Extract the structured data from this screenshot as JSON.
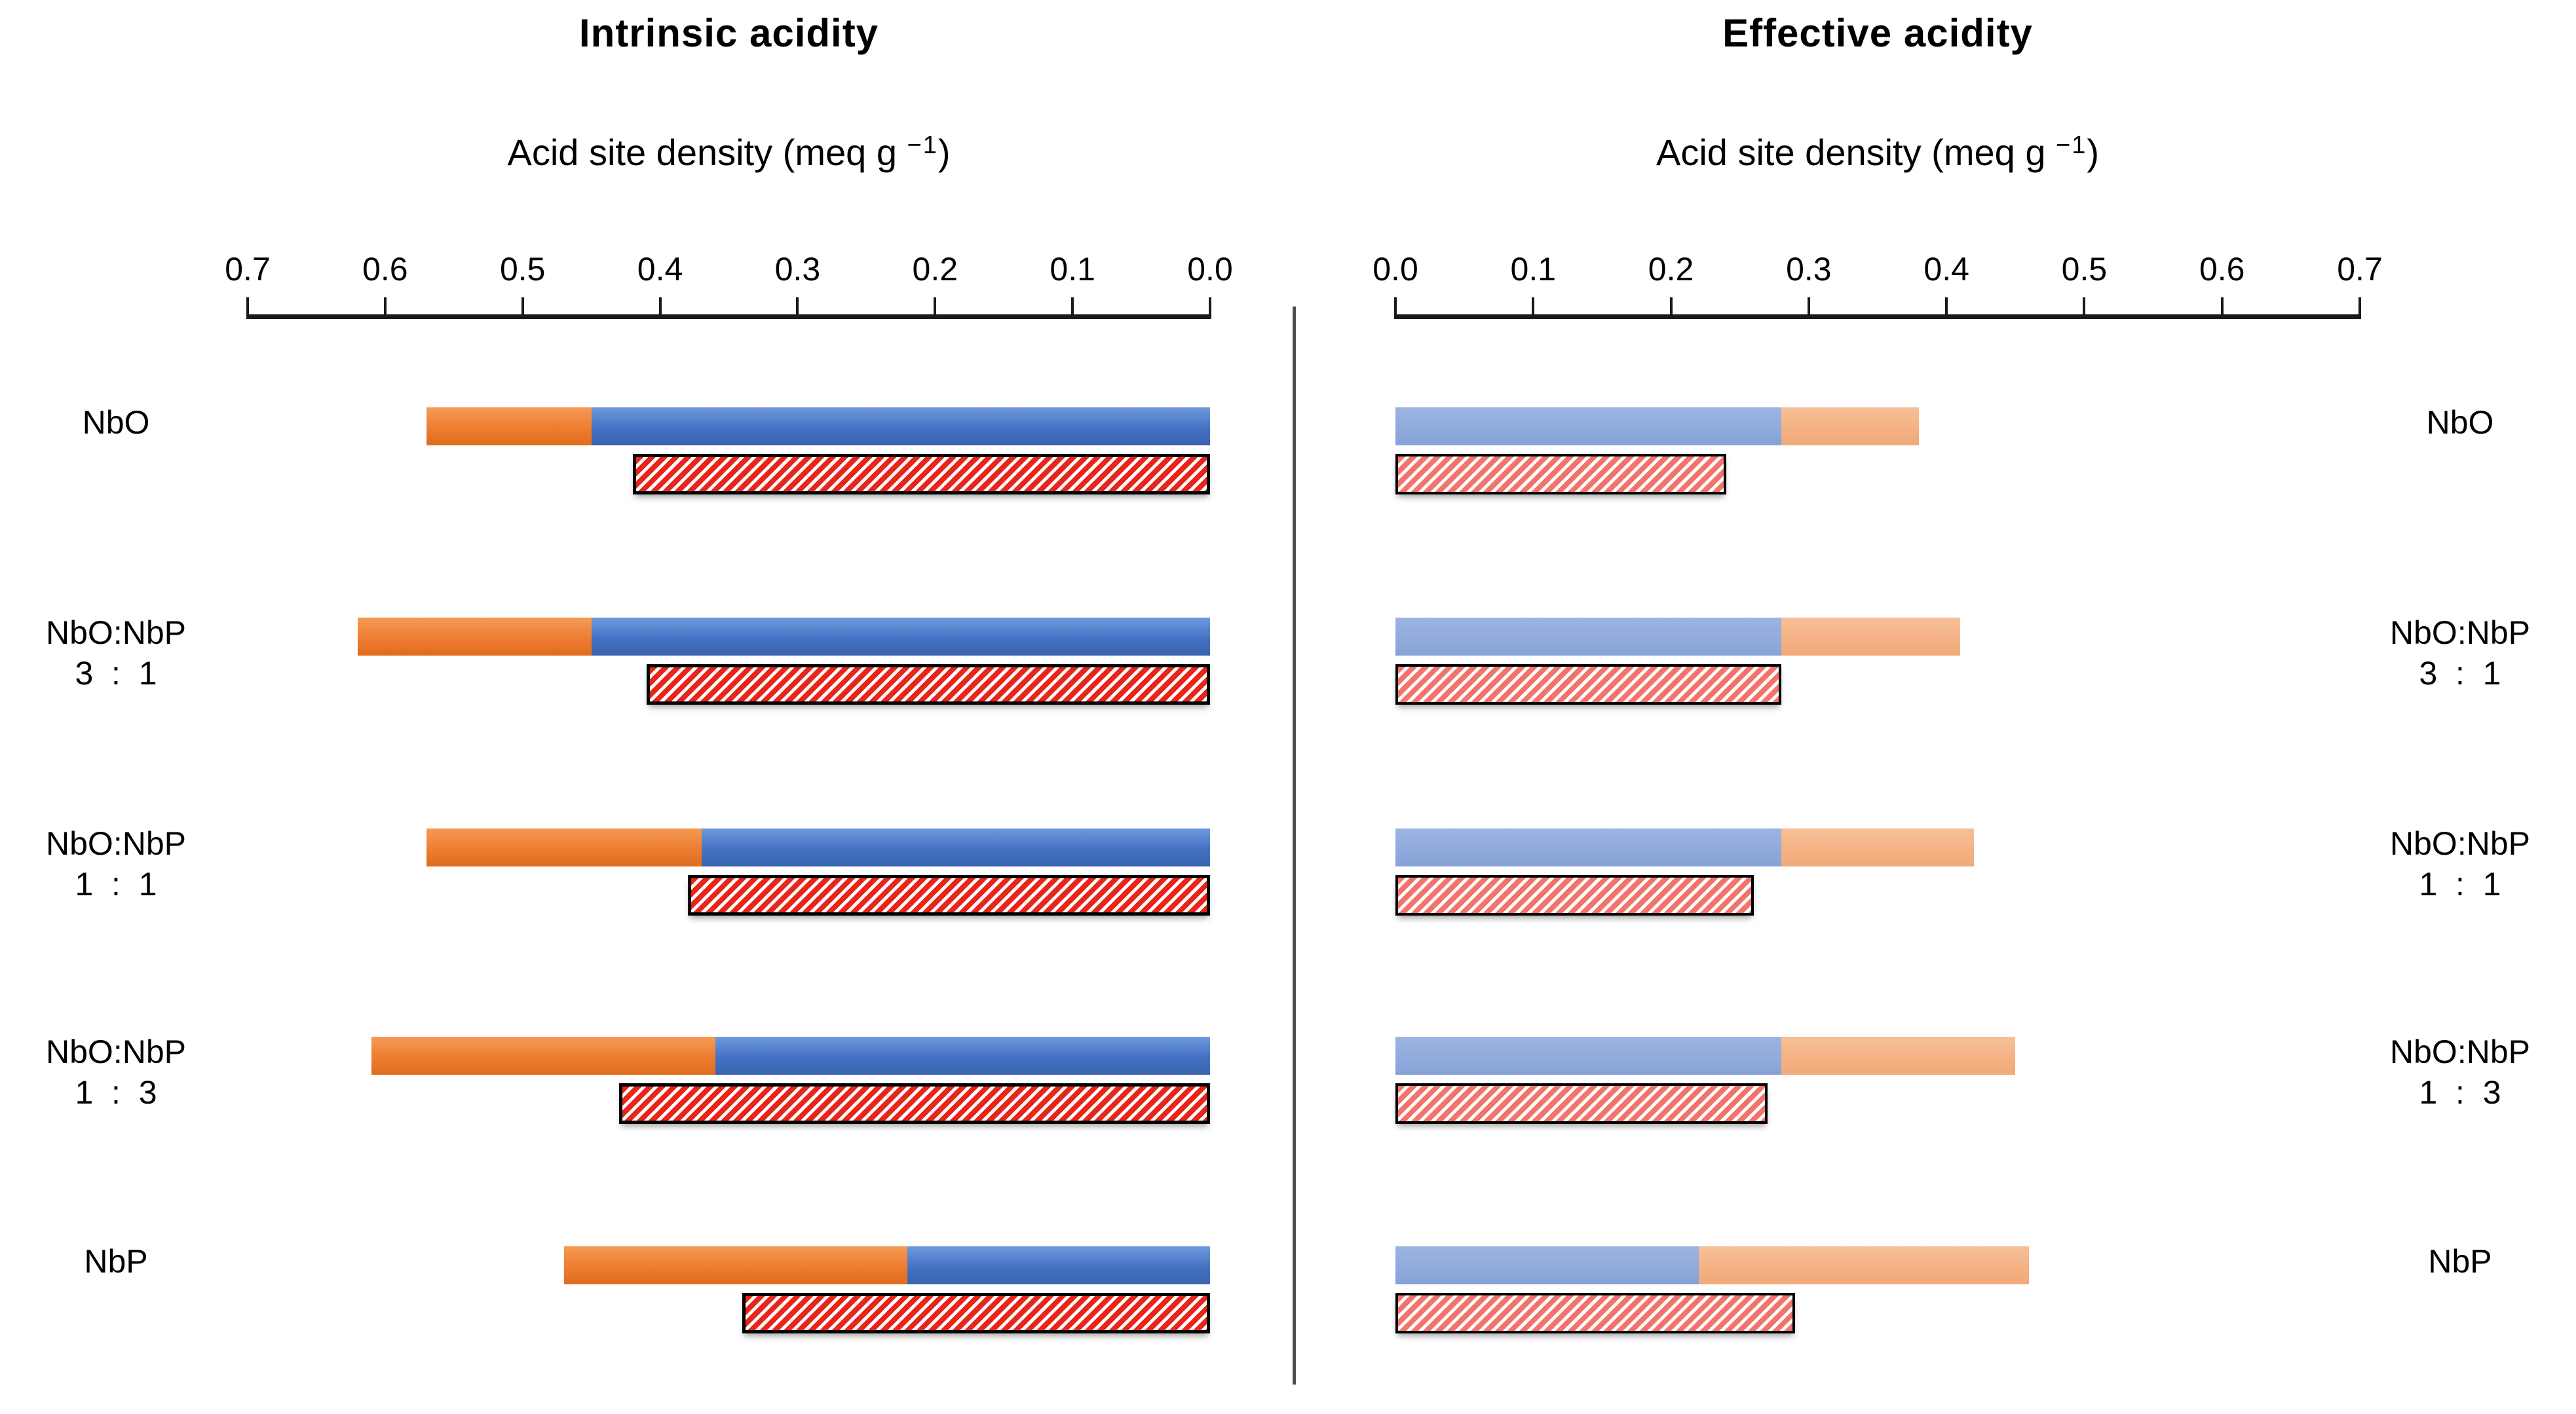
{
  "style": {
    "axis_color": "#1a1a1a",
    "divider_color": "#4d4d4d",
    "hatch_border_color": "#000000",
    "hatch_background": "#ffffff",
    "solid_blue": "#4472C4",
    "solid_orange": "#ED7D31",
    "light_blue": "#8FAADC",
    "light_orange": "#F4B183",
    "hatch_red_strong": "#E8241B",
    "hatch_red_light": "#F2736C"
  },
  "rows": [
    {
      "lines": [
        "NbO"
      ]
    },
    {
      "lines": [
        "NbO:NbP",
        "3  :  1"
      ]
    },
    {
      "lines": [
        "NbO:NbP",
        "1  :  1"
      ]
    },
    {
      "lines": [
        "NbO:NbP",
        "1  :  3"
      ]
    },
    {
      "lines": [
        "NbP"
      ]
    }
  ],
  "chart_data": [
    {
      "type": "bar",
      "panel": "intrinsic",
      "title": "Intrinsic acidity",
      "xlabel": "Acid site density (meq g −1)",
      "xlabel_parts": {
        "pre": "Acid site density (meq g ",
        "sup": "−1",
        "post": ")"
      },
      "orientation": "horizontal",
      "axis": {
        "min": 0.0,
        "max": 0.7,
        "step": 0.1,
        "direction": "right_to_left",
        "tick_labels": [
          "0.7",
          "0.6",
          "0.5",
          "0.4",
          "0.3",
          "0.2",
          "0.1",
          "0.0"
        ]
      },
      "categories": [
        "NbO",
        "NbO:NbP 3:1",
        "NbO:NbP 1:1",
        "NbO:NbP 1:3",
        "NbP"
      ],
      "series": [
        {
          "name": "solid-blue",
          "style": "solid",
          "color": "#4472C4",
          "values": [
            0.45,
            0.45,
            0.37,
            0.36,
            0.22
          ]
        },
        {
          "name": "solid-orange",
          "style": "solid",
          "color": "#ED7D31",
          "values": [
            0.12,
            0.17,
            0.2,
            0.25,
            0.25
          ]
        },
        {
          "name": "hatched-red",
          "style": "diagonal-hatch",
          "color": "#E8241B",
          "values": [
            0.42,
            0.41,
            0.38,
            0.43,
            0.34
          ]
        }
      ],
      "solid_totals": [
        0.57,
        0.62,
        0.57,
        0.61,
        0.47
      ],
      "legend": "none",
      "grid": false
    },
    {
      "type": "bar",
      "panel": "effective",
      "title": "Effective acidity",
      "xlabel": "Acid site density (meq g −1)",
      "xlabel_parts": {
        "pre": "Acid site density (meq g ",
        "sup": "−1",
        "post": ")"
      },
      "orientation": "horizontal",
      "axis": {
        "min": 0.0,
        "max": 0.7,
        "step": 0.1,
        "direction": "left_to_right",
        "tick_labels": [
          "0.0",
          "0.1",
          "0.2",
          "0.3",
          "0.4",
          "0.5",
          "0.6",
          "0.7"
        ]
      },
      "categories": [
        "NbO",
        "NbO:NbP 3:1",
        "NbO:NbP 1:1",
        "NbO:NbP 1:3",
        "NbP"
      ],
      "series": [
        {
          "name": "light-blue",
          "style": "solid",
          "color": "#8FAADC",
          "values": [
            0.28,
            0.28,
            0.28,
            0.28,
            0.22
          ]
        },
        {
          "name": "light-orange",
          "style": "solid",
          "color": "#F4B183",
          "values": [
            0.1,
            0.13,
            0.14,
            0.17,
            0.24
          ]
        },
        {
          "name": "hatched-light-red",
          "style": "diagonal-hatch",
          "color": "#F2736C",
          "values": [
            0.24,
            0.28,
            0.26,
            0.27,
            0.29
          ]
        }
      ],
      "solid_totals": [
        0.38,
        0.41,
        0.42,
        0.45,
        0.46
      ],
      "legend": "none",
      "grid": false
    }
  ]
}
